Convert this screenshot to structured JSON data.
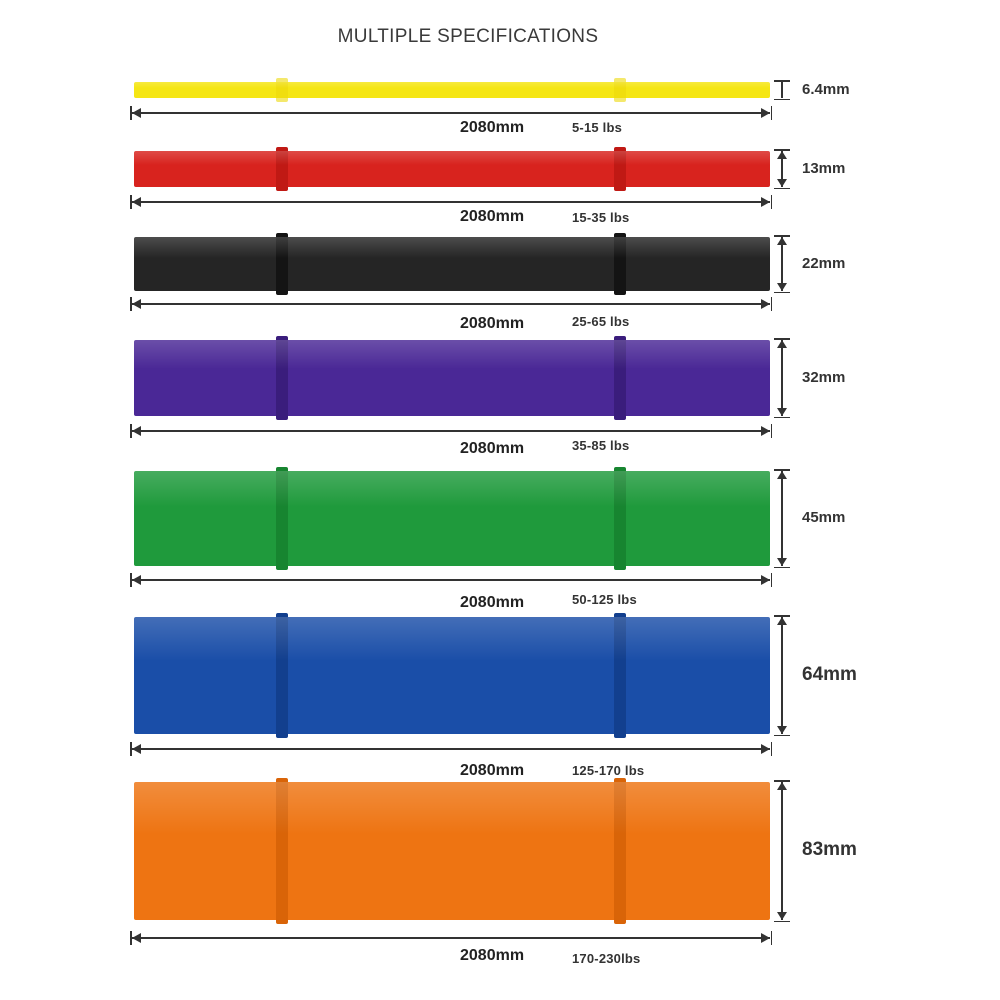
{
  "title": "MULTIPLE SPECIFICATIONS",
  "bands": [
    {
      "color": "#f5e614",
      "clip_color": "#ecd90a",
      "thickness": "6.4mm",
      "length": "2080mm",
      "resistance": "5-15 lbs"
    },
    {
      "color": "#d8231e",
      "clip_color": "#c01914",
      "thickness": "13mm",
      "length": "2080mm",
      "resistance": "15-35 lbs"
    },
    {
      "color": "#252525",
      "clip_color": "#141414",
      "thickness": "22mm",
      "length": "2080mm",
      "resistance": "25-65 lbs"
    },
    {
      "color": "#4a2896",
      "clip_color": "#3a1d7c",
      "thickness": "32mm",
      "length": "2080mm",
      "resistance": "35-85 lbs"
    },
    {
      "color": "#1f9a3c",
      "clip_color": "#178530",
      "thickness": "45mm",
      "length": "2080mm",
      "resistance": "50-125 lbs"
    },
    {
      "color": "#1a4ea8",
      "clip_color": "#123f8e",
      "thickness": "64mm",
      "length": "2080mm",
      "resistance": "125-170 lbs"
    },
    {
      "color": "#ee7412",
      "clip_color": "#d96408",
      "thickness": "83mm",
      "length": "2080mm",
      "resistance": "170-230lbs"
    }
  ]
}
